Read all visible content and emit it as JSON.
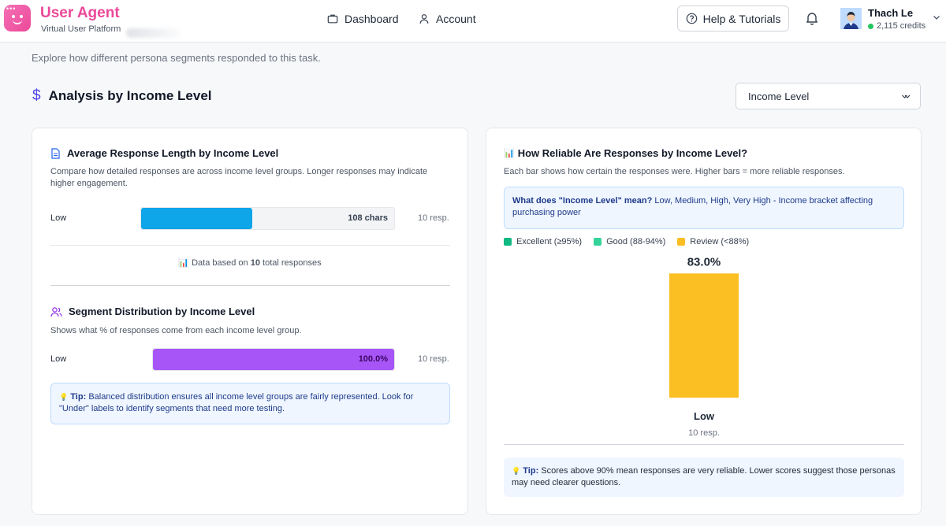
{
  "header": {
    "brand_title": "User Agent",
    "brand_subtitle": "Virtual User Platform",
    "nav": [
      {
        "label": "Dashboard",
        "icon": "briefcase-icon"
      },
      {
        "label": "Account",
        "icon": "user-icon"
      }
    ],
    "help_label": "Help & Tutorials",
    "user": {
      "name": "Thach Le",
      "credits": "2,115 credits"
    }
  },
  "intro": "Explore how different persona segments responded to this task.",
  "section": {
    "title": "Analysis by Income Level",
    "select_value": "Income Level"
  },
  "response_length": {
    "title": "Average Response Length by Income Level",
    "description": "Compare how detailed responses are across income level groups. Longer responses may indicate higher engagement.",
    "rows": [
      {
        "label": "Low",
        "value": "108 chars",
        "fraction": 0.44,
        "count": "10 resp."
      }
    ],
    "note_prefix": "Data based on",
    "note_total": "10",
    "note_suffix": "total responses"
  },
  "distribution": {
    "title": "Segment Distribution by Income Level",
    "description": "Shows what % of responses come from each income level group.",
    "rows": [
      {
        "label": "Low",
        "value": "100.0%",
        "fraction": 1.0,
        "count": "10 resp."
      }
    ],
    "tip_label": "Tip:",
    "tip_text": "Balanced distribution ensures all income level groups are fairly represented. Look for \"Under\" labels to identify segments that need more testing."
  },
  "reliability": {
    "title": "How Reliable Are Responses by Income Level?",
    "description": "Each bar shows how certain the responses were. Higher bars = more reliable responses.",
    "info_label": "What does \"Income Level\" mean?",
    "info_text": "Low, Medium, High, Very High - Income bracket affecting purchasing power",
    "legend": [
      {
        "label": "Excellent (≥95%)",
        "color": "#10b981"
      },
      {
        "label": "Good (88-94%)",
        "color": "#34d399"
      },
      {
        "label": "Review (<88%)",
        "color": "#fbbf24"
      }
    ],
    "tip_label": "Tip:",
    "tip_text": "Scores above 90% mean responses are very reliable. Lower scores suggest those personas may need clearer questions."
  },
  "chart_data": {
    "type": "bar",
    "categories": [
      "Low"
    ],
    "values": [
      83.0
    ],
    "value_labels": [
      "83.0%"
    ],
    "sublabels": [
      "10 resp."
    ],
    "colors": [
      "#fbbf24"
    ],
    "ylim": [
      0,
      100
    ]
  }
}
